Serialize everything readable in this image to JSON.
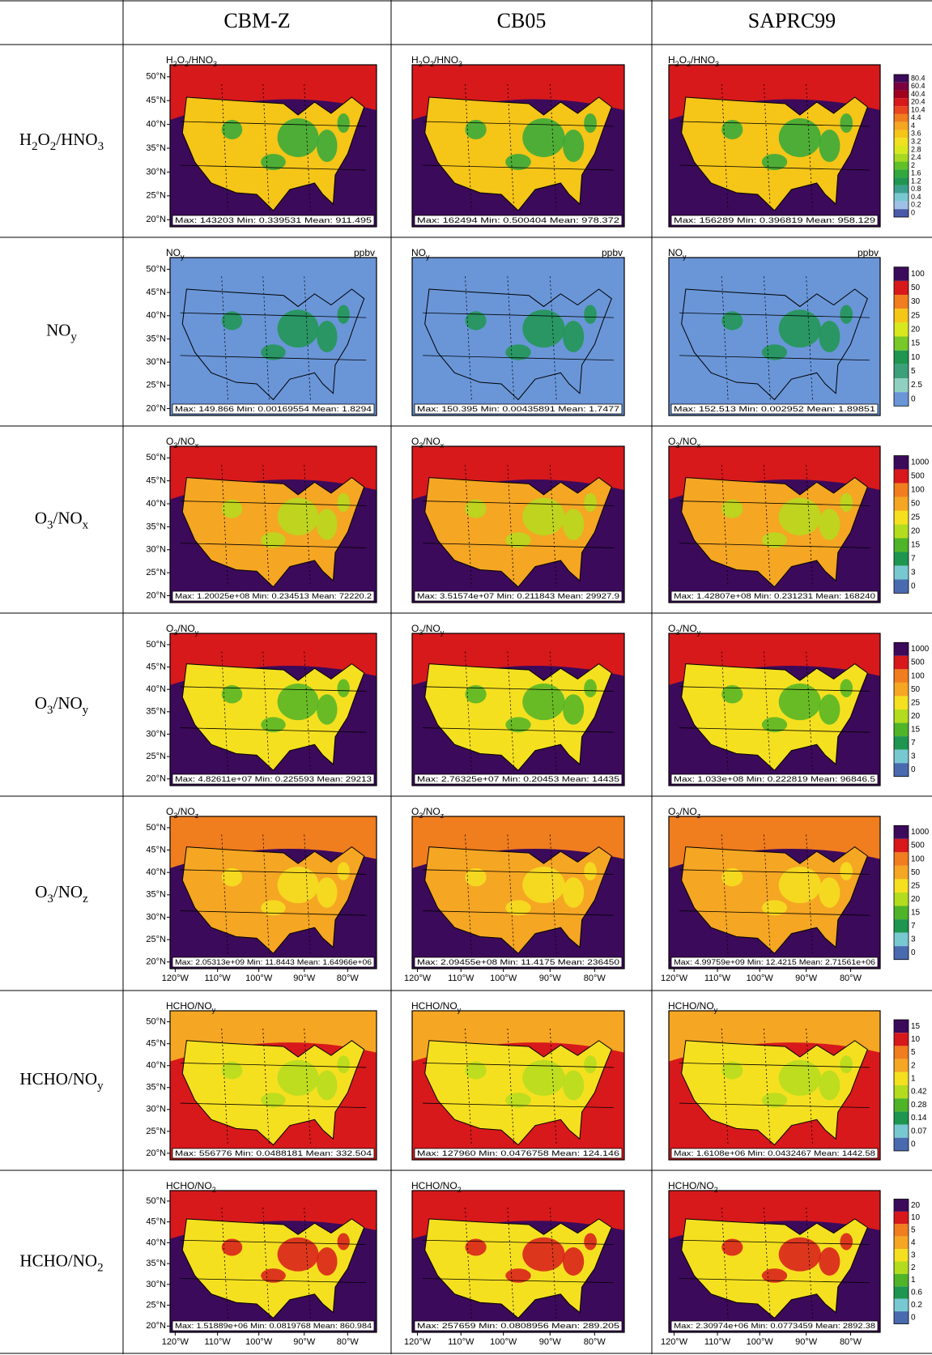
{
  "table": {
    "columns": [
      "CBM-Z",
      "CB05",
      "SAPRC99"
    ],
    "latitudes": [
      "50°N",
      "45°N",
      "40°N",
      "35°N",
      "30°N",
      "25°N",
      "20°N"
    ],
    "longitudes": [
      "120°W",
      "110°W",
      "100°W",
      "90°W",
      "80°W"
    ],
    "rows": [
      {
        "label_parts": [
          "H",
          "2",
          "O",
          "2",
          "/HNO",
          "3"
        ],
        "stats": [
          "Max: 143203  Min: 0.339531  Mean: 911.495",
          "Max: 162494  Min: 0.500404  Mean: 978.372",
          "Max: 156289  Min: 0.396819  Mean: 958.129"
        ],
        "colorbar": {
          "labels": [
            "80.4",
            "60.4",
            "40.4",
            "20.4",
            "10.4",
            "4.4",
            "4",
            "3.6",
            "3.2",
            "2.8",
            "2.4",
            "2",
            "1.6",
            "1.2",
            "0.8",
            "0.4",
            "0.2",
            "0"
          ],
          "colors": [
            "#3c0a5a",
            "#7a0040",
            "#a0001e",
            "#d7191c",
            "#e8461e",
            "#f07d1e",
            "#f5a623",
            "#f5c518",
            "#f0e020",
            "#d8e81e",
            "#a8d820",
            "#60c028",
            "#30a83c",
            "#1e9650",
            "#3ca090",
            "#78c8d2",
            "#a0c0e8",
            "#4a5aa8"
          ]
        }
      },
      {
        "label_parts": [
          "NO",
          "y"
        ],
        "unit": "ppbv",
        "stats": [
          "Max: 149.866  Min: 0.00169554  Mean: 1.8294",
          "Max: 150.395  Min: 0.00435891  Mean: 1.7477",
          "Max: 152.513  Min: 0.002952  Mean: 1.89851"
        ],
        "colorbar": {
          "labels": [
            "100",
            "50",
            "30",
            "25",
            "20",
            "15",
            "10",
            "5",
            "2.5",
            "0"
          ],
          "colors": [
            "#3c0a5a",
            "#d7191c",
            "#f07d1e",
            "#f5c518",
            "#d8e81e",
            "#78c828",
            "#1e9650",
            "#3ca07a",
            "#90d0c0",
            "#6a96d8"
          ]
        }
      },
      {
        "label_parts": [
          "O",
          "3",
          "/NO",
          "x"
        ],
        "stats": [
          "Max: 1.20025e+08  Min: 0.234513  Mean: 72220.2",
          "Max: 3.51574e+07  Min: 0.211843  Mean: 29927.9",
          "Max: 1.42807e+08  Min: 0.231231  Mean: 168240"
        ],
        "colorbar": {
          "labels": [
            "1000",
            "500",
            "100",
            "50",
            "25",
            "20",
            "15",
            "7",
            "3",
            "0"
          ],
          "colors": [
            "#3c0a5a",
            "#d7191c",
            "#f07d1e",
            "#f5a623",
            "#f5e020",
            "#b4dc1e",
            "#50b428",
            "#1e9650",
            "#78c8d2",
            "#4a6ab0"
          ]
        }
      },
      {
        "label_parts": [
          "O",
          "3",
          "/NO",
          "y"
        ],
        "stats": [
          "Max: 4.82611e+07  Min: 0.225593  Mean: 29213",
          "Max: 2.76325e+07  Min: 0.20453  Mean: 14435",
          "Max: 1.033e+08  Min: 0.222819  Mean: 96846.5"
        ],
        "colorbar": {
          "labels": [
            "1000",
            "500",
            "100",
            "50",
            "25",
            "20",
            "15",
            "7",
            "3",
            "0"
          ],
          "colors": [
            "#3c0a5a",
            "#d7191c",
            "#f07d1e",
            "#f5a623",
            "#f5e020",
            "#b4dc1e",
            "#50b428",
            "#1e9650",
            "#78c8d2",
            "#4a6ab0"
          ]
        }
      },
      {
        "label_parts": [
          "O",
          "3",
          "/NO",
          "z"
        ],
        "longitude_labels": true,
        "stats": [
          "Max: 2.05313e+09  Min: 11.8443  Mean: 1.64966e+06",
          "Max: 2.09455e+08  Min: 11.4175  Mean: 236450",
          "Max: 4.99759e+09  Min: 12.4215  Mean: 2.71561e+06"
        ],
        "colorbar": {
          "labels": [
            "1000",
            "500",
            "100",
            "50",
            "25",
            "20",
            "15",
            "7",
            "3",
            "0"
          ],
          "colors": [
            "#3c0a5a",
            "#d7191c",
            "#f07d1e",
            "#f5a623",
            "#f5e020",
            "#b4dc1e",
            "#50b428",
            "#1e9650",
            "#78c8d2",
            "#4a6ab0"
          ]
        }
      },
      {
        "label_parts": [
          "HCHO/NO",
          "y"
        ],
        "stats": [
          "Max: 556776  Min: 0.0488181  Mean: 332.504",
          "Max: 127960  Min: 0.0476758  Mean: 124.146",
          "Max: 1.6108e+06  Min: 0.0432467  Mean: 1442.58"
        ],
        "colorbar": {
          "labels": [
            "15",
            "10",
            "5",
            "2",
            "1",
            "0.42",
            "0.28",
            "0.14",
            "0.07",
            "0"
          ],
          "colors": [
            "#3c0a5a",
            "#d7191c",
            "#f07d1e",
            "#f5a623",
            "#f5e020",
            "#b4dc1e",
            "#50b428",
            "#1e9650",
            "#78c8d2",
            "#4a6ab0"
          ]
        }
      },
      {
        "label_parts": [
          "HCHO/NO",
          "2"
        ],
        "longitude_labels": true,
        "stats": [
          "Max: 1.51889e+06  Min: 0.0819768  Mean: 860.984",
          "Max: 257659  Min: 0.0808956  Mean: 289.205",
          "Max: 2.30974e+06  Min: 0.0773459  Mean: 2892.38"
        ],
        "colorbar": {
          "labels": [
            "20",
            "10",
            "5",
            "4",
            "3",
            "2",
            "1",
            "0.6",
            "0.2",
            "0"
          ],
          "colors": [
            "#3c0a5a",
            "#d7191c",
            "#f07d1e",
            "#f5a623",
            "#f5e020",
            "#b4dc1e",
            "#50b428",
            "#1e9650",
            "#78c8d2",
            "#4a6ab0"
          ]
        }
      }
    ]
  }
}
